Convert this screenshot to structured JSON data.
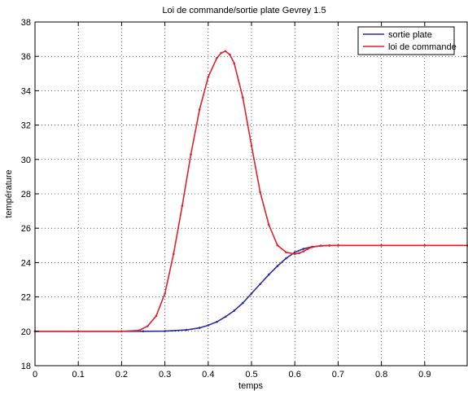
{
  "chart_data": {
    "type": "line",
    "title": "Loi de commande/sortie plate Gevrey 1.5",
    "xlabel": "temps",
    "ylabel": "température",
    "xlim": [
      0,
      1
    ],
    "ylim": [
      18,
      38
    ],
    "xticks": [
      "0",
      "0.1",
      "0.2",
      "0.3",
      "0.4",
      "0.5",
      "0.6",
      "0.7",
      "0.8",
      "0.9"
    ],
    "yticks": [
      "18",
      "20",
      "22",
      "24",
      "26",
      "28",
      "30",
      "32",
      "34",
      "36",
      "38"
    ],
    "grid": true,
    "legend_position": "top-right",
    "colors": {
      "sortie": "#2a2a9a",
      "commande": "#e0202a"
    },
    "series": [
      {
        "name": "sortie plate",
        "x": [
          0,
          0.1,
          0.2,
          0.25,
          0.3,
          0.35,
          0.38,
          0.4,
          0.42,
          0.44,
          0.46,
          0.48,
          0.5,
          0.52,
          0.54,
          0.56,
          0.58,
          0.6,
          0.62,
          0.64,
          0.66,
          0.68,
          0.7,
          0.8,
          0.9,
          1.0
        ],
        "y": [
          20,
          20,
          20,
          20,
          20.01,
          20.08,
          20.2,
          20.35,
          20.55,
          20.85,
          21.2,
          21.65,
          22.2,
          22.75,
          23.3,
          23.8,
          24.25,
          24.6,
          24.8,
          24.92,
          24.97,
          24.99,
          25,
          25,
          25,
          25
        ]
      },
      {
        "name": "loi de commande",
        "x": [
          0,
          0.1,
          0.2,
          0.24,
          0.26,
          0.28,
          0.3,
          0.32,
          0.34,
          0.36,
          0.38,
          0.4,
          0.42,
          0.43,
          0.44,
          0.45,
          0.46,
          0.48,
          0.5,
          0.52,
          0.54,
          0.56,
          0.58,
          0.6,
          0.61,
          0.62,
          0.63,
          0.64,
          0.66,
          0.68,
          0.7,
          0.8,
          0.9,
          1.0
        ],
        "y": [
          20,
          20,
          20,
          20.05,
          20.3,
          20.9,
          22.2,
          24.5,
          27.3,
          30.3,
          32.9,
          34.8,
          35.9,
          36.2,
          36.3,
          36.1,
          35.6,
          33.6,
          30.8,
          28.1,
          26.2,
          25.0,
          24.6,
          24.5,
          24.55,
          24.65,
          24.8,
          24.9,
          24.98,
          25,
          25,
          25,
          25,
          25
        ]
      }
    ]
  }
}
